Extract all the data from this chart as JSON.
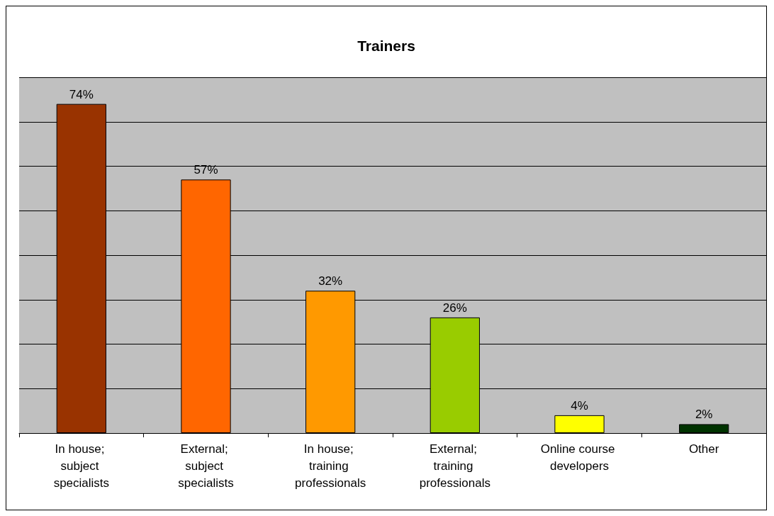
{
  "chart_data": {
    "type": "bar",
    "title": "Trainers",
    "categories": [
      "In house; subject specialists",
      "External; subject specialists",
      "In house; training professionals",
      "External; training professionals",
      "Online course developers",
      "Other"
    ],
    "values": [
      74,
      57,
      32,
      26,
      4,
      2
    ],
    "colors": [
      "#993300",
      "#ff6600",
      "#ff9900",
      "#99cc00",
      "#ffff00",
      "#003300"
    ],
    "value_labels": [
      "74%",
      "57%",
      "32%",
      "26%",
      "4%",
      "2%"
    ],
    "ylim": [
      0,
      80
    ],
    "yticks": [
      0,
      10,
      20,
      30,
      40,
      50,
      60,
      70,
      80
    ],
    "grid": "y",
    "tick_labels": "x"
  }
}
